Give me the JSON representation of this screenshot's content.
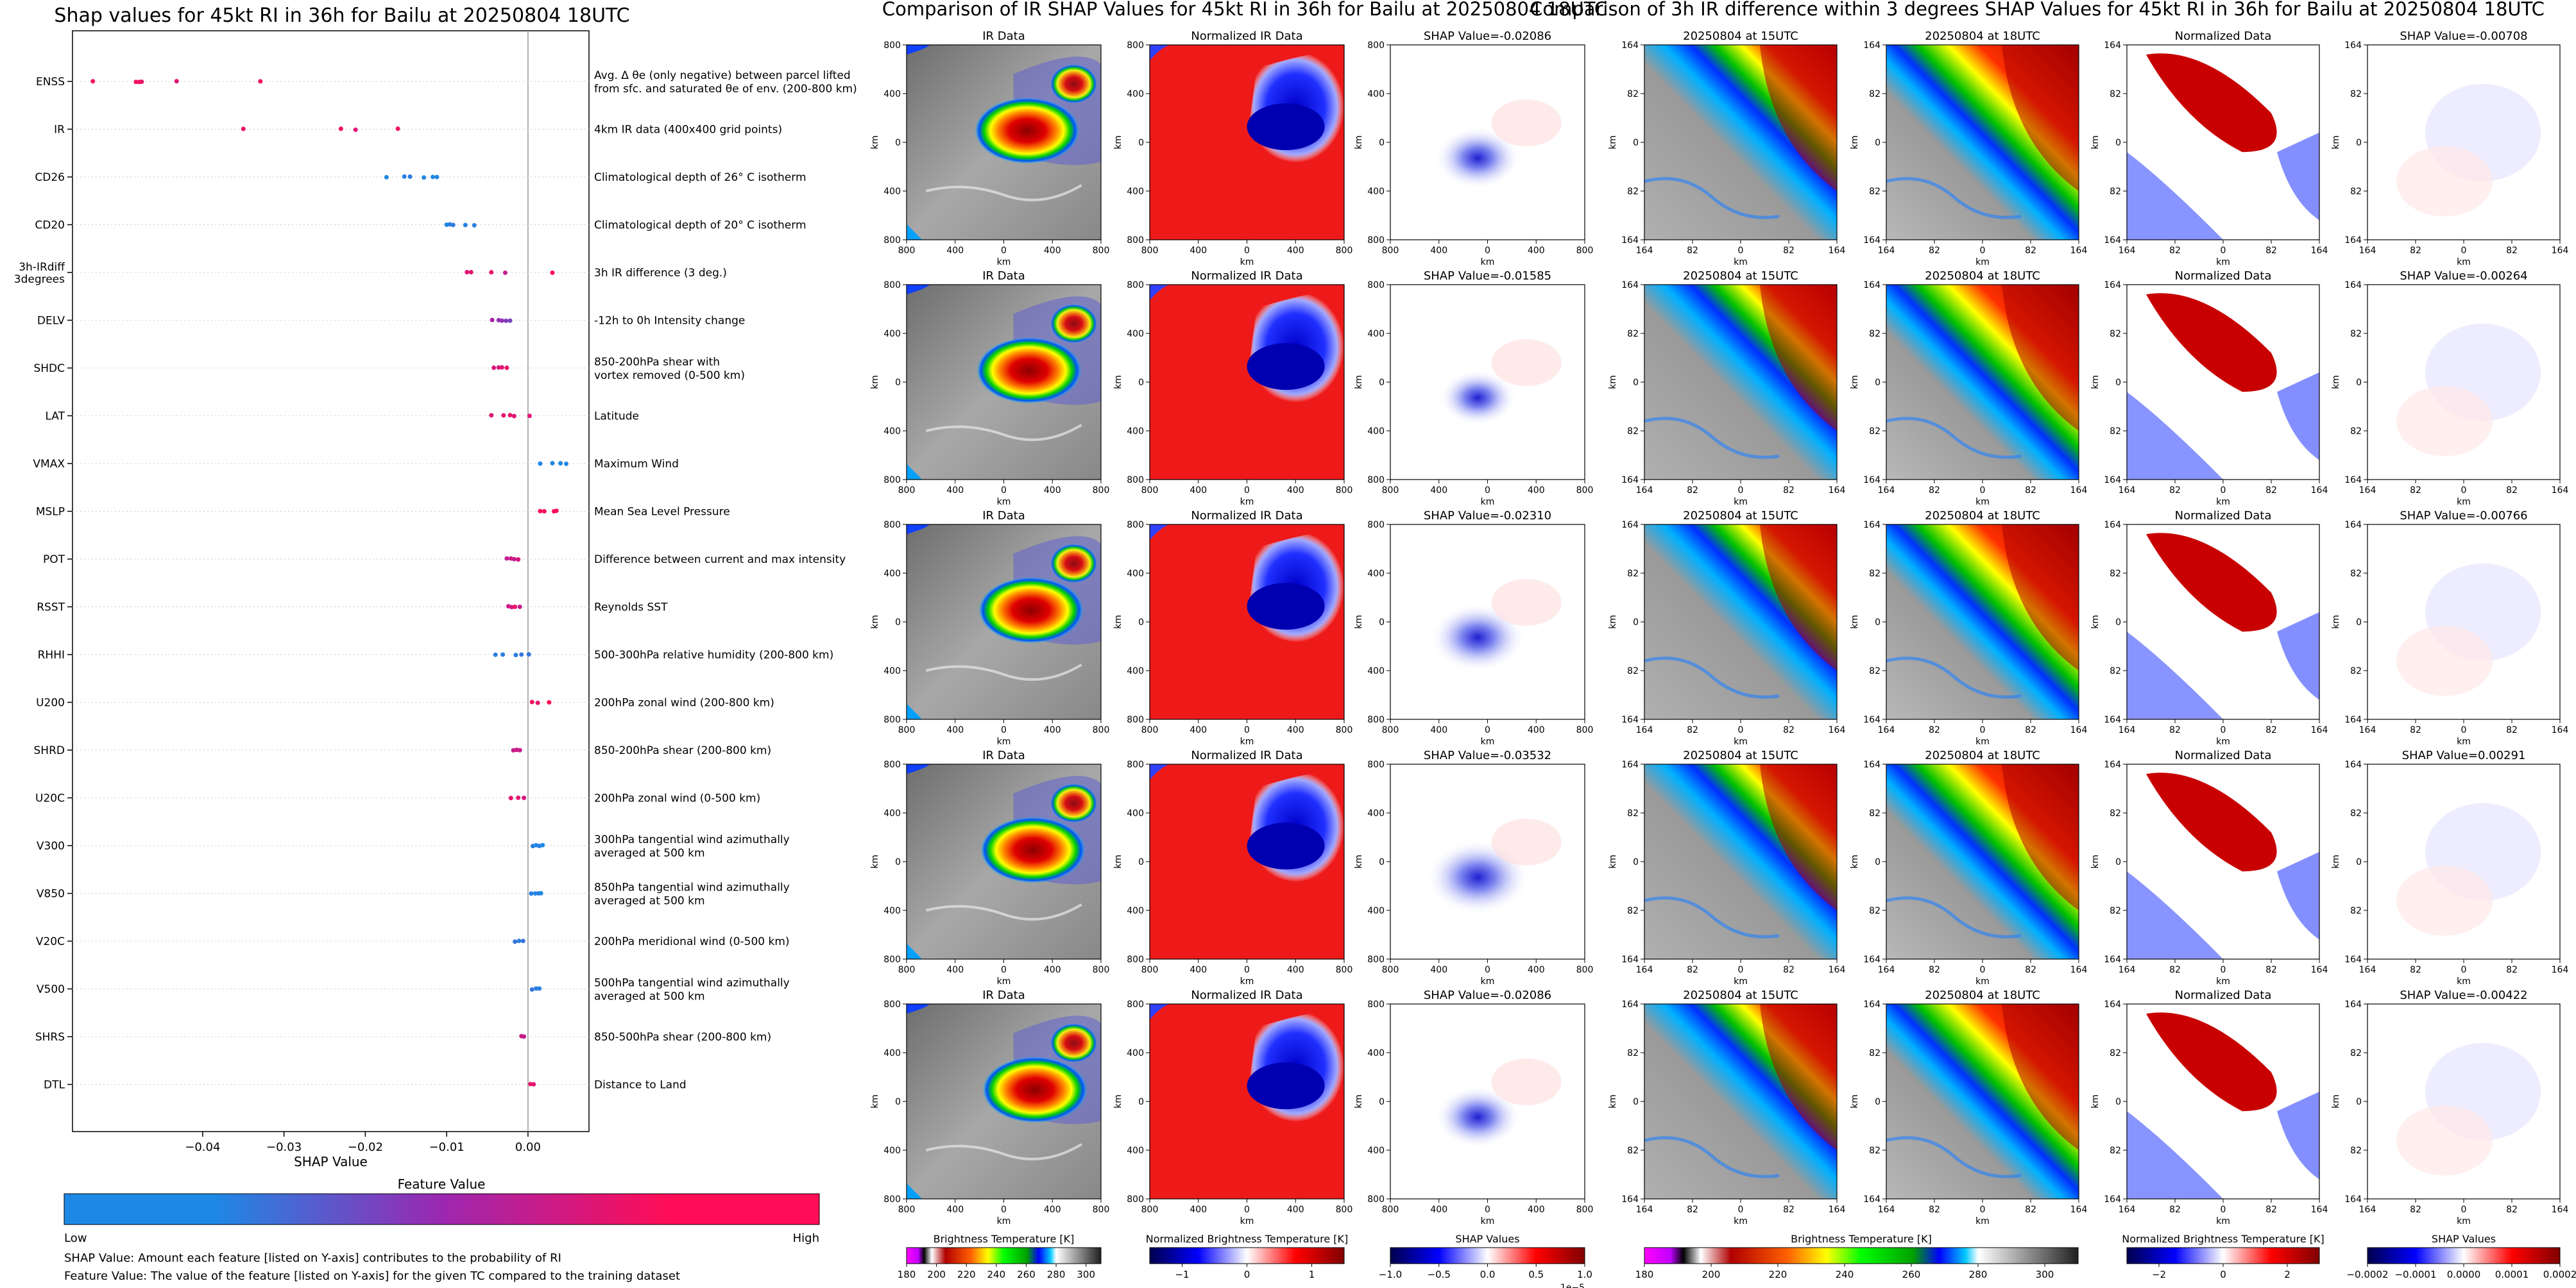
{
  "chart_data": [
    {
      "type": "scatter",
      "title": "Shap values for 45kt RI in 36h for Bailu at 20250804 18UTC",
      "xlabel": "SHAP Value",
      "ylabel": "",
      "xlim": [
        -0.056,
        0.0075
      ],
      "xticks": [
        -0.04,
        -0.03,
        -0.02,
        -0.01,
        0.0
      ],
      "xtick_labels": [
        "−0.04",
        "−0.03",
        "−0.02",
        "−0.01",
        "0.00"
      ],
      "features": [
        {
          "name": "ENSS",
          "description": "Avg. Δ θe (only negative) between parcel lifted\nfrom sfc. and saturated θe of env. (200-800 km)",
          "points": [
            [
              -0.0535,
              0.98
            ],
            [
              -0.0482,
              0.92
            ],
            [
              -0.0478,
              0.95
            ],
            [
              -0.0475,
              0.9
            ],
            [
              -0.0432,
              0.85
            ],
            [
              -0.0329,
              0.95
            ]
          ]
        },
        {
          "name": "IR",
          "description": "4km IR data (400x400 grid points)",
          "points": [
            [
              -0.035,
              0.9
            ],
            [
              -0.023,
              0.95
            ],
            [
              -0.0212,
              0.85
            ],
            [
              -0.016,
              0.95
            ]
          ]
        },
        {
          "name": "CD26",
          "description": "Climatological depth of 26° C isotherm",
          "points": [
            [
              -0.0174,
              0.0
            ],
            [
              -0.0152,
              0.05
            ],
            [
              -0.0145,
              0.05
            ],
            [
              -0.0128,
              0.03
            ],
            [
              -0.0117,
              0.0
            ],
            [
              -0.0112,
              0.0
            ]
          ]
        },
        {
          "name": "CD20",
          "description": "Climatological depth of 20° C isotherm",
          "points": [
            [
              -0.01,
              0.0
            ],
            [
              -0.0096,
              0.05
            ],
            [
              -0.0092,
              0.05
            ],
            [
              -0.0077,
              0.03
            ],
            [
              -0.0066,
              0.05
            ]
          ]
        },
        {
          "name": "3h-IRdiff\n3degrees",
          "description": "3h IR difference (3 deg.)",
          "points": [
            [
              -0.0075,
              0.85
            ],
            [
              -0.007,
              0.85
            ],
            [
              -0.0045,
              0.9
            ],
            [
              -0.0028,
              0.7
            ],
            [
              0.003,
              1.0
            ]
          ]
        },
        {
          "name": "DELV",
          "description": "-12h to 0h Intensity change",
          "points": [
            [
              -0.0044,
              0.55
            ],
            [
              -0.0036,
              0.45
            ],
            [
              -0.0032,
              0.45
            ],
            [
              -0.0027,
              0.4
            ],
            [
              -0.0022,
              0.35
            ]
          ]
        },
        {
          "name": "SHDC",
          "description": "850-200hPa shear with\nvortex removed (0-500 km)",
          "points": [
            [
              -0.0042,
              0.8
            ],
            [
              -0.0036,
              0.82
            ],
            [
              -0.0032,
              0.85
            ],
            [
              -0.0026,
              0.9
            ]
          ]
        },
        {
          "name": "LAT",
          "description": "Latitude",
          "points": [
            [
              -0.0045,
              0.85
            ],
            [
              -0.003,
              0.85
            ],
            [
              -0.0022,
              0.9
            ],
            [
              -0.0017,
              0.85
            ],
            [
              0.0002,
              0.85
            ]
          ]
        },
        {
          "name": "VMAX",
          "description": "Maximum Wind",
          "points": [
            [
              0.0015,
              0.0
            ],
            [
              0.003,
              0.02
            ],
            [
              0.004,
              0.0
            ],
            [
              0.0047,
              0.0
            ]
          ]
        },
        {
          "name": "MSLP",
          "description": "Mean Sea Level Pressure",
          "points": [
            [
              0.0015,
              1.0
            ],
            [
              0.002,
              0.97
            ],
            [
              0.0032,
              1.0
            ],
            [
              0.0035,
              0.95
            ]
          ]
        },
        {
          "name": "POT",
          "description": "Difference between current and max intensity",
          "points": [
            [
              -0.0026,
              0.7
            ],
            [
              -0.0021,
              0.75
            ],
            [
              -0.0017,
              0.7
            ],
            [
              -0.0012,
              0.8
            ]
          ]
        },
        {
          "name": "RSST",
          "description": "Reynolds SST",
          "points": [
            [
              -0.0024,
              0.75
            ],
            [
              -0.002,
              0.8
            ],
            [
              -0.0016,
              0.9
            ],
            [
              -0.001,
              0.7
            ]
          ]
        },
        {
          "name": "RHHI",
          "description": "500-300hPa relative humidity (200-800 km)",
          "points": [
            [
              -0.004,
              0.05
            ],
            [
              -0.0031,
              0.05
            ],
            [
              -0.0015,
              0.05
            ],
            [
              -0.0008,
              0.1
            ],
            [
              0.0001,
              0.1
            ]
          ]
        },
        {
          "name": "U200",
          "description": "200hPa zonal wind (200-800 km)",
          "points": [
            [
              0.0005,
              0.95
            ],
            [
              0.0012,
              0.9
            ],
            [
              0.0026,
              1.0
            ]
          ]
        },
        {
          "name": "SHRD",
          "description": "850-200hPa shear (200-800 km)",
          "points": [
            [
              -0.0018,
              0.7
            ],
            [
              -0.0014,
              0.75
            ],
            [
              -0.001,
              0.7
            ]
          ]
        },
        {
          "name": "U20C",
          "description": "200hPa zonal wind (0-500 km)",
          "points": [
            [
              -0.0021,
              0.9
            ],
            [
              -0.0012,
              0.85
            ],
            [
              -0.0005,
              0.8
            ]
          ]
        },
        {
          "name": "V300",
          "description": "300hPa tangential wind azimuthally\naveraged at 500 km",
          "points": [
            [
              0.0006,
              0.05
            ],
            [
              0.001,
              0.0
            ],
            [
              0.0014,
              0.05
            ],
            [
              0.0018,
              0.0
            ]
          ]
        },
        {
          "name": "V850",
          "description": "850hPa tangential wind azimuthally\naveraged at 500 km",
          "points": [
            [
              0.0004,
              0.05
            ],
            [
              0.0009,
              0.0
            ],
            [
              0.0013,
              0.05
            ],
            [
              0.0016,
              0.0
            ]
          ]
        },
        {
          "name": "V20C",
          "description": "200hPa meridional wind (0-500 km)",
          "points": [
            [
              -0.0016,
              0.1
            ],
            [
              -0.0011,
              0.05
            ],
            [
              -0.0006,
              0.1
            ]
          ]
        },
        {
          "name": "V500",
          "description": "500hPa tangential wind azimuthally\naveraged at 500 km",
          "points": [
            [
              0.0005,
              0.1
            ],
            [
              0.001,
              0.05
            ],
            [
              0.0014,
              0.05
            ]
          ]
        },
        {
          "name": "SHRS",
          "description": "850-500hPa shear (200-800 km)",
          "points": [
            [
              -0.0008,
              0.75
            ],
            [
              -0.0005,
              0.7
            ]
          ]
        },
        {
          "name": "DTL",
          "description": "Distance to Land",
          "points": [
            [
              0.0003,
              0.9
            ],
            [
              0.0007,
              0.85
            ]
          ]
        }
      ],
      "colorbar": {
        "title": "Feature Value",
        "low_label": "Low",
        "high_label": "High",
        "low_color": "#1e88e5",
        "mid_color": "#9c27b0",
        "high_color": "#ff0d57"
      },
      "footnotes": [
        "SHAP Value: Amount each feature [listed on Y-axis] contributes to the probability of RI",
        "Feature Value: The value of the feature [listed on Y-axis] for the given TC compared to the training dataset"
      ]
    },
    {
      "type": "heatmap",
      "title": "Comparison of IR SHAP Values for 45kt RI in 36h for Bailu at 20250804 18UTC",
      "columns": [
        "IR Data",
        "Normalized IR Data",
        "SHAP Value"
      ],
      "shap_values": [
        "SHAP Value=-0.02086",
        "SHAP Value=-0.01585",
        "SHAP Value=-0.02310",
        "SHAP Value=-0.03532",
        "SHAP Value=-0.02086"
      ],
      "axis_ticks": [
        "800",
        "400",
        "0",
        "400",
        "800"
      ],
      "axis_label": "km",
      "colorbars": [
        {
          "label": "Brightness Temperature [K]",
          "ticks": [
            "180",
            "200",
            "220",
            "240",
            "260",
            "280",
            "300"
          ]
        },
        {
          "label": "Normalized Brightness Temperature [K]",
          "ticks": [
            "−1",
            "0",
            "1"
          ]
        },
        {
          "label": "SHAP Values",
          "ticks": [
            "−1.0",
            "−0.5",
            "0.0",
            "0.5",
            "1.0"
          ],
          "exponent": "1e−5"
        }
      ]
    },
    {
      "type": "heatmap",
      "title": "Comparison of 3h IR difference within 3 degrees SHAP Values for 45kt RI in 36h for Bailu at 20250804 18UTC",
      "columns": [
        "20250804 at 15UTC",
        "20250804 at 18UTC",
        "Normalized Data"
      ],
      "shap_values": [
        "SHAP Value=-0.00708",
        "SHAP Value=-0.00264",
        "SHAP Value=-0.00766",
        "SHAP Value=0.00291",
        "SHAP Value=-0.00422"
      ],
      "axis_ticks": [
        "164",
        "82",
        "0",
        "82",
        "164"
      ],
      "axis_label": "km",
      "colorbars": [
        {
          "label": "Brightness Temperature [K]",
          "ticks": [
            "180",
            "200",
            "220",
            "240",
            "260",
            "280",
            "300"
          ]
        },
        {
          "label": "Normalized Brightness Temperature [K]",
          "ticks": [
            "−2",
            "0",
            "2"
          ]
        },
        {
          "label": "SHAP Values",
          "ticks": [
            "−0.0002",
            "−0.0001",
            "0.0000",
            "0.0001",
            "0.0002"
          ]
        }
      ]
    }
  ]
}
